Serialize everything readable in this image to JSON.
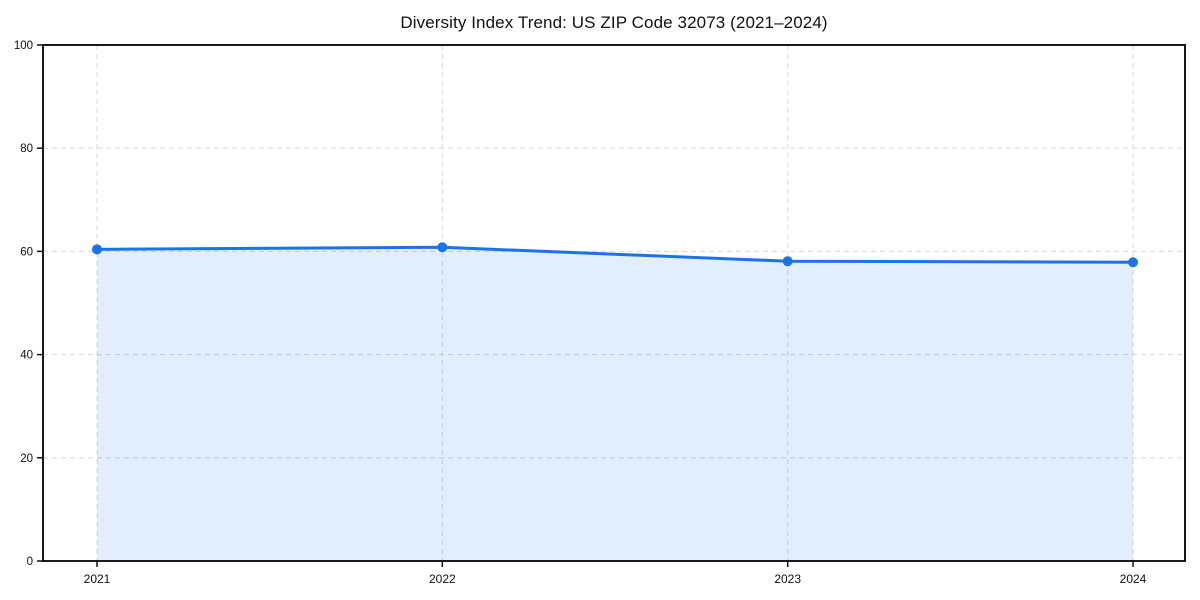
{
  "page": {
    "background": "#ffffff"
  },
  "chart_data": {
    "type": "area",
    "title": "Diversity Index Trend: US ZIP Code 32073 (2021–2024)",
    "x": [
      "2021",
      "2022",
      "2023",
      "2024"
    ],
    "series": [
      {
        "name": "Diversity Index",
        "values": [
          60.4,
          60.8,
          58.1,
          57.9
        ]
      }
    ],
    "xlabel": "",
    "ylabel": "",
    "ylim": [
      0,
      100
    ],
    "yticks": [
      0,
      20,
      40,
      60,
      80,
      100
    ],
    "xtick_labels": [
      "2021",
      "2022",
      "2023",
      "2024"
    ],
    "grid": true,
    "grid_style": "dashed",
    "legend_position": "none",
    "marker": "circle",
    "colors": {
      "line": "#1a73e8",
      "marker": "#1a73e8",
      "fill": "rgba(26,115,232,0.12)",
      "grid": "#dcdcdc",
      "spine": "#000000",
      "tick_label": "#111111",
      "title": "#111111"
    }
  }
}
